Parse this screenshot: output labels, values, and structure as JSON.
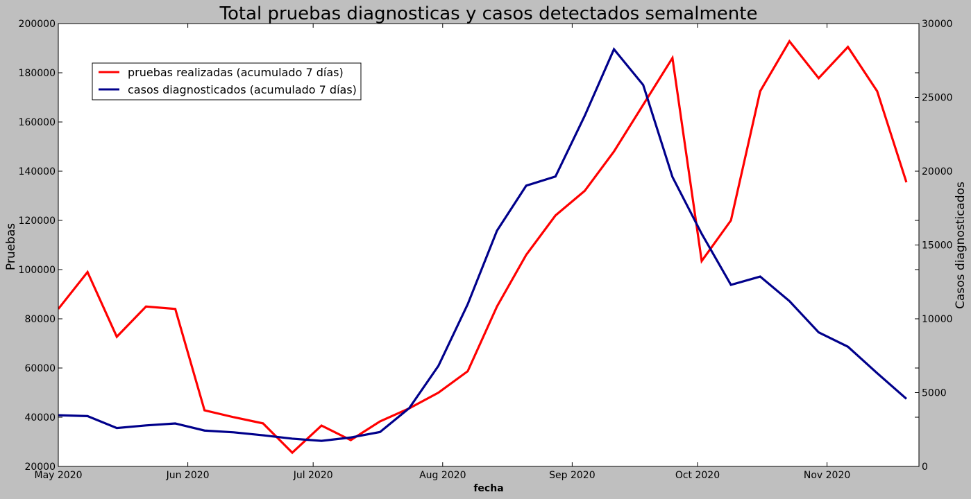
{
  "chart_data": {
    "type": "line",
    "title": "Total pruebas diagnosticas y casos detectados semalmente",
    "xlabel": "fecha",
    "ylabel_left": "Pruebas",
    "ylabel_right": "Casos diagnosticados",
    "ylim_left": [
      20000,
      200000
    ],
    "ylim_right": [
      0,
      30000
    ],
    "xlim": [
      "2020-05-01",
      "2020-11-23"
    ],
    "x_ticks": [
      {
        "date": "2020-05-01",
        "label": "May 2020"
      },
      {
        "date": "2020-06-01",
        "label": "Jun 2020"
      },
      {
        "date": "2020-07-01",
        "label": "Jul 2020"
      },
      {
        "date": "2020-08-01",
        "label": "Aug 2020"
      },
      {
        "date": "2020-09-01",
        "label": "Sep 2020"
      },
      {
        "date": "2020-10-01",
        "label": "Oct 2020"
      },
      {
        "date": "2020-11-01",
        "label": "Nov 2020"
      }
    ],
    "y_ticks_left": [
      "20000",
      "40000",
      "60000",
      "80000",
      "100000",
      "120000",
      "140000",
      "160000",
      "180000",
      "200000"
    ],
    "y_ticks_right": [
      "0",
      "5000",
      "10000",
      "15000",
      "20000",
      "25000",
      "30000"
    ],
    "legend_position": "upper-left",
    "x": [
      "2020-05-01",
      "2020-05-08",
      "2020-05-15",
      "2020-05-22",
      "2020-05-29",
      "2020-06-05",
      "2020-06-12",
      "2020-06-19",
      "2020-06-26",
      "2020-07-03",
      "2020-07-10",
      "2020-07-17",
      "2020-07-24",
      "2020-07-31",
      "2020-08-07",
      "2020-08-14",
      "2020-08-21",
      "2020-08-28",
      "2020-09-04",
      "2020-09-11",
      "2020-09-18",
      "2020-09-25",
      "2020-10-02",
      "2020-10-09",
      "2020-10-16",
      "2020-10-23",
      "2020-10-30",
      "2020-11-06",
      "2020-11-13",
      "2020-11-20"
    ],
    "series": [
      {
        "name": "pruebas realizadas (acumulado 7 días)",
        "axis": "left",
        "color": "#ff0000",
        "values": [
          84000,
          99000,
          72700,
          85000,
          84000,
          42800,
          40000,
          37500,
          25600,
          36600,
          30700,
          38300,
          43600,
          50000,
          58700,
          85000,
          106000,
          122000,
          132000,
          148000,
          167000,
          186000,
          103500,
          120000,
          172500,
          192800,
          177800,
          190500,
          172500,
          135500
        ]
      },
      {
        "name": "casos diagnosticados (acumulado 7 días)",
        "axis": "right",
        "color": "#00008b",
        "values": [
          3470,
          3410,
          2600,
          2780,
          2910,
          2430,
          2310,
          2110,
          1880,
          1730,
          1960,
          2330,
          3950,
          6820,
          10990,
          15970,
          19020,
          19640,
          23750,
          28260,
          25840,
          19610,
          15760,
          12300,
          12860,
          11200,
          9080,
          8110,
          6320,
          4580
        ]
      }
    ]
  }
}
